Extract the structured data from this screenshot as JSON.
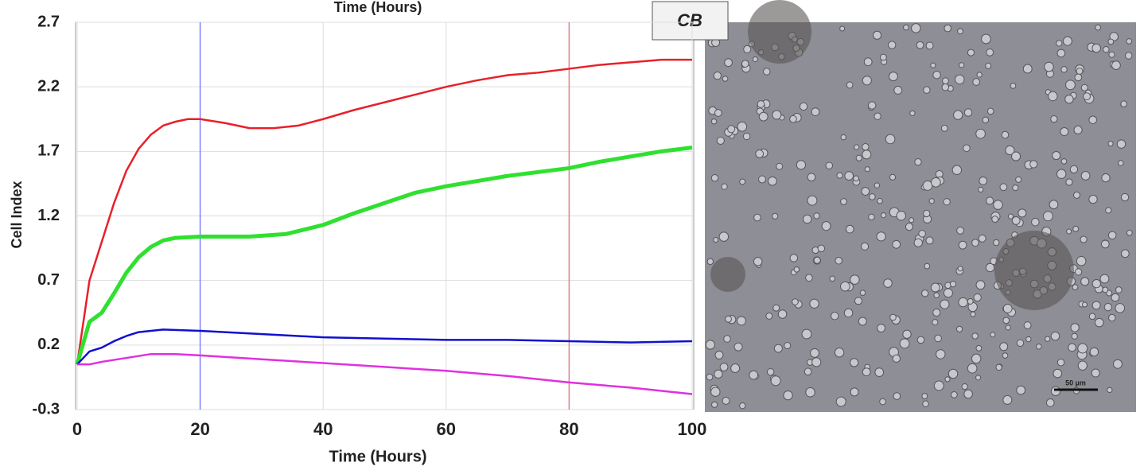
{
  "chart_data": {
    "type": "line",
    "top_caption": "Time (Hours)",
    "x_label": "Time (Hours)",
    "y_label": "Cell Index",
    "image_label": "CB",
    "scale_bar_label": "50 µm",
    "xlim": [
      0,
      100
    ],
    "xticks": [
      0,
      20,
      40,
      60,
      80,
      100
    ],
    "ylim": [
      -0.3,
      2.7
    ],
    "yticks": [
      -0.3,
      0.2,
      0.7,
      1.2,
      1.7,
      2.2,
      2.7
    ],
    "grid": true,
    "vlines": [
      {
        "x": 20,
        "color": "#8080ff"
      },
      {
        "x": 80,
        "color": "#e08090"
      }
    ],
    "series": [
      {
        "color": "#e8202a",
        "x": [
          0,
          2,
          4,
          6,
          8,
          10,
          12,
          14,
          16,
          18,
          20,
          24,
          28,
          32,
          36,
          40,
          45,
          50,
          55,
          60,
          65,
          70,
          75,
          80,
          85,
          90,
          95,
          100
        ],
        "values": [
          0.05,
          0.7,
          1.0,
          1.3,
          1.55,
          1.72,
          1.83,
          1.9,
          1.93,
          1.95,
          1.95,
          1.92,
          1.88,
          1.88,
          1.9,
          1.95,
          2.02,
          2.08,
          2.14,
          2.2,
          2.25,
          2.29,
          2.31,
          2.34,
          2.37,
          2.39,
          2.41,
          2.41
        ]
      },
      {
        "color": "#30e030",
        "x": [
          0,
          2,
          4,
          6,
          8,
          10,
          12,
          14,
          16,
          20,
          28,
          34,
          40,
          45,
          50,
          55,
          60,
          65,
          70,
          75,
          80,
          85,
          90,
          95,
          100
        ],
        "values": [
          0.05,
          0.38,
          0.45,
          0.6,
          0.76,
          0.88,
          0.96,
          1.01,
          1.03,
          1.04,
          1.04,
          1.06,
          1.13,
          1.22,
          1.3,
          1.38,
          1.43,
          1.47,
          1.51,
          1.54,
          1.57,
          1.62,
          1.66,
          1.7,
          1.73
        ]
      },
      {
        "color": "#1010d0",
        "x": [
          0,
          2,
          4,
          6,
          8,
          10,
          14,
          20,
          28,
          40,
          50,
          60,
          70,
          80,
          90,
          100
        ],
        "values": [
          0.05,
          0.15,
          0.18,
          0.23,
          0.27,
          0.3,
          0.32,
          0.31,
          0.29,
          0.26,
          0.25,
          0.24,
          0.24,
          0.23,
          0.22,
          0.23
        ]
      },
      {
        "color": "#e030e0",
        "x": [
          0,
          2,
          4,
          8,
          12,
          16,
          20,
          30,
          40,
          50,
          60,
          70,
          80,
          90,
          100
        ],
        "values": [
          0.05,
          0.05,
          0.07,
          0.1,
          0.13,
          0.13,
          0.12,
          0.09,
          0.06,
          0.03,
          0.0,
          -0.04,
          -0.09,
          -0.13,
          -0.18
        ]
      }
    ]
  }
}
